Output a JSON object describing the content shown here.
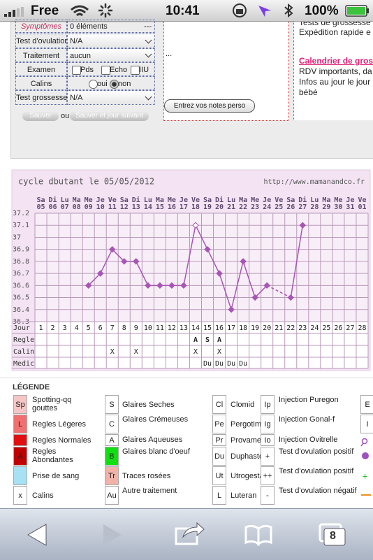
{
  "status_bar": {
    "carrier": "Free",
    "time": "10:41",
    "battery": "100%"
  },
  "form": {
    "rows": [
      {
        "label": "Symptômes",
        "value": "0 éléments",
        "extra": "---"
      },
      {
        "label": "Test d'ovulation",
        "value": "N/A"
      },
      {
        "label": "Traitement",
        "value": "aucun"
      },
      {
        "label": "Examen",
        "options": [
          "Pds",
          "Echo",
          "IIU"
        ]
      },
      {
        "label": "Calins",
        "options": [
          "oui",
          "non"
        ]
      },
      {
        "label": "Test grossesse",
        "value": "N/A"
      }
    ],
    "save": "Sauver",
    "or": "ou",
    "save_next": "Sauver et jour suivant"
  },
  "notes": {
    "dots": "...",
    "button": "Entrez vos notes perso"
  },
  "right_panel": {
    "lines_top": [
      "Tests de grossesse",
      "Expédition rapide e"
    ],
    "link": "Calendrier de gros",
    "lines": [
      "RDV importants, da",
      "Infos au jour le jour",
      "bébé"
    ]
  },
  "chart": {
    "title": "cycle dbutant le 05/05/2012",
    "url": "http://www.mamanandco.fr",
    "weekdays": [
      "Sa",
      "Di",
      "Lu",
      "Ma",
      "Me",
      "Je",
      "Ve",
      "Sa",
      "Di",
      "Lu",
      "Ma",
      "Me",
      "Je",
      "Ve",
      "Sa",
      "Di",
      "Lu",
      "Ma",
      "Me",
      "Je",
      "Ve",
      "Sa",
      "Di",
      "Lu",
      "Ma",
      "Me",
      "Je",
      "Ve"
    ],
    "dates": [
      "05",
      "06",
      "07",
      "08",
      "09",
      "10",
      "11",
      "12",
      "13",
      "14",
      "15",
      "16",
      "17",
      "18",
      "19",
      "20",
      "21",
      "22",
      "23",
      "24",
      "25",
      "26",
      "27",
      "28",
      "29",
      "30",
      "31",
      "01"
    ],
    "days": [
      1,
      2,
      3,
      4,
      5,
      6,
      7,
      8,
      9,
      10,
      11,
      12,
      13,
      14,
      15,
      16,
      17,
      18,
      19,
      20,
      21,
      22,
      23,
      24,
      25,
      26,
      27,
      28
    ],
    "temperatures": [
      null,
      null,
      null,
      null,
      36.6,
      36.7,
      36.9,
      36.8,
      36.8,
      36.6,
      36.6,
      36.6,
      36.6,
      37.1,
      36.9,
      36.7,
      36.4,
      36.8,
      36.5,
      36.6,
      null,
      36.5,
      37.1,
      null,
      null,
      null,
      null,
      null
    ],
    "open_marker_day": 14,
    "color": "#a855b5",
    "ylim": [
      36.3,
      37.2
    ],
    "yticks": [
      37.2,
      37.1,
      37,
      36.9,
      36.8,
      36.7,
      36.6,
      36.5,
      36.4,
      36.3
    ],
    "row_labels": [
      "Jour",
      "Regle",
      "Calin",
      "Medic"
    ],
    "regle": [
      {
        "day": 14,
        "label": "A"
      },
      {
        "day": 15,
        "label": "S"
      },
      {
        "day": 16,
        "label": "A"
      }
    ],
    "calin": [
      {
        "day": 7,
        "label": "X"
      },
      {
        "day": 9,
        "label": "X"
      },
      {
        "day": 14,
        "label": "X"
      },
      {
        "day": 16,
        "label": "X"
      }
    ],
    "medic": [
      {
        "day": 15,
        "label": "Du"
      },
      {
        "day": 16,
        "label": "Du"
      },
      {
        "day": 17,
        "label": "Du"
      },
      {
        "day": 18,
        "label": "Du"
      }
    ]
  },
  "legend": {
    "title": "LÉGENDE",
    "columns": [
      [
        {
          "code": "Sp",
          "label": "Spotting-qq gouttes",
          "color": "#f6c6c6"
        },
        {
          "code": "L",
          "label": "Regles Légeres",
          "color": "#f07070"
        },
        {
          "label": "Regles Normales",
          "color": "#e01010"
        },
        {
          "code": "A",
          "label": "Regles Abondantes",
          "color": "#c00000"
        },
        {
          "label": "Prise de sang",
          "color": "#a8e0f4"
        },
        {
          "code": "x",
          "label": "Calins",
          "color": "#ffffff"
        }
      ],
      [
        {
          "code": "S",
          "label": "Glaires Seches",
          "color": "#ffffff"
        },
        {
          "code": "C",
          "label": "Glaires Crémeuses",
          "color": "#ffffff"
        },
        {
          "code": "A",
          "label": "Glaires Aqueuses",
          "color": "#ffffff"
        },
        {
          "code": "B",
          "label": "Glaires blanc d'oeuf",
          "color": "#10e010"
        },
        {
          "code": "Tr",
          "label": "Traces rosées",
          "color": "#f2b2a8"
        },
        {
          "code": "Au",
          "label": "Autre traitement",
          "color": "#ffffff"
        }
      ],
      [
        {
          "code": "Cl",
          "label": "Clomid",
          "color": "#ffffff"
        },
        {
          "code": "Pe",
          "label": "Pergotime",
          "color": "#ffffff"
        },
        {
          "code": "Pr",
          "label": "Provames",
          "color": "#ffffff"
        },
        {
          "code": "Du",
          "label": "Duphaston",
          "color": "#ffffff"
        },
        {
          "code": "Ut",
          "label": "Utrogestan",
          "color": "#ffffff"
        },
        {
          "code": "L",
          "label": "Luteran",
          "color": "#ffffff"
        }
      ],
      [
        {
          "code": "Ip",
          "label": "Injection Puregon",
          "color": "#ffffff"
        },
        {
          "code": "Ig",
          "label": "Injection Gonal-f",
          "color": "#ffffff"
        },
        {
          "code": "Io",
          "label": "Injection Ovitrelle",
          "color": "#ffffff"
        },
        {
          "code": "+",
          "label": "Test d'ovulation positif",
          "color": "#ffffff"
        },
        {
          "code": "++",
          "label": "Test d'ovulation positif",
          "color": "#ffffff"
        },
        {
          "code": "-",
          "label": "Test d'ovulation négatif",
          "color": "#ffffff"
        }
      ],
      [
        {
          "code": "E",
          "color": "#ffffff"
        },
        {
          "code": "I",
          "color": "#ffffff"
        }
      ]
    ]
  },
  "toolbar": {
    "tabs": "8"
  }
}
